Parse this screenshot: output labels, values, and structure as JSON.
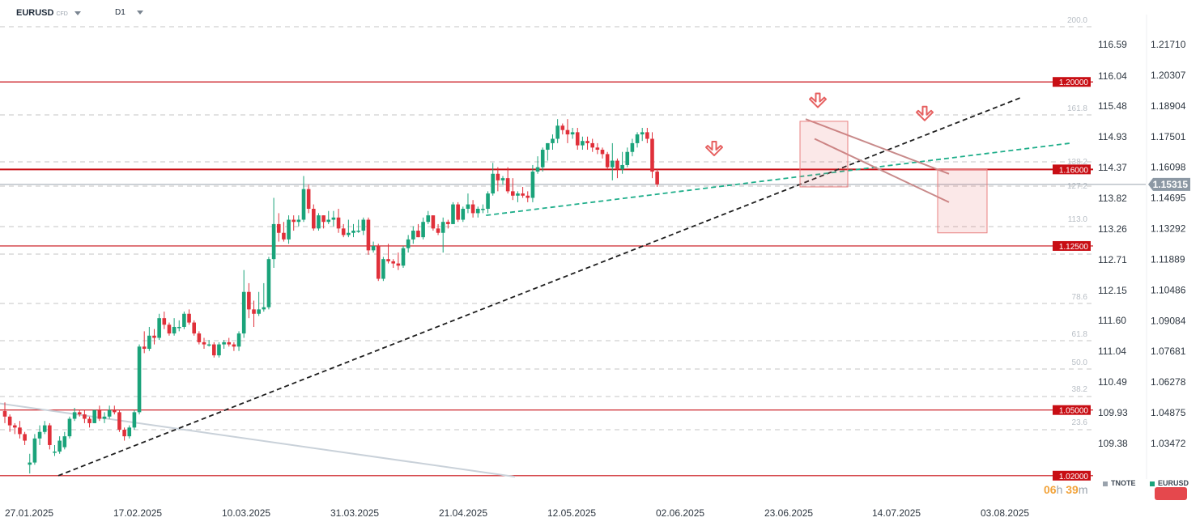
{
  "header": {
    "symbol": "EURUSD",
    "symbol_tag": "CFD",
    "timeframe": "D1"
  },
  "countdown": {
    "hours": "06",
    "hours_unit": "h",
    "minutes": "39",
    "minutes_unit": "m"
  },
  "legend": [
    {
      "label": "TNOTE",
      "color": "#9aa3ad"
    },
    {
      "label": "EURUSD",
      "color": "#1aa37a"
    }
  ],
  "colors": {
    "bull": "#1aa37a",
    "bear": "#e0303a",
    "level": "#c80e14",
    "fib": "#d8d8d8",
    "trend": "#1f1f1f",
    "channel": "#c88a8a",
    "green_line": "#1fae8a",
    "tnote_line": "#c9d1d9",
    "arrow": "#e66060"
  },
  "chart_data": {
    "type": "candlestick",
    "symbol": "EURUSD",
    "timeframe": "D1",
    "x_labels": [
      "27.01.2025",
      "17.02.2025",
      "10.03.2025",
      "31.03.2025",
      "21.04.2025",
      "12.05.2025",
      "02.06.2025",
      "23.06.2025",
      "14.07.2025",
      "03.08.2025"
    ],
    "y_axis_left": {
      "label": "TNOTE",
      "ticks": [
        116.59,
        116.04,
        115.48,
        114.93,
        114.37,
        113.82,
        113.26,
        112.71,
        112.15,
        111.6,
        111.04,
        110.49,
        109.93,
        109.38
      ]
    },
    "y_axis_right": {
      "ticks": [
        1.2171,
        1.20307,
        1.18904,
        1.17501,
        1.16098,
        1.14695,
        1.13292,
        1.11889,
        1.10486,
        1.09084,
        1.07681,
        1.06278,
        1.04875,
        1.03472
      ]
    },
    "current_price": "1.15315",
    "horizontal_levels": [
      "1.20000",
      "1.16000",
      "1.12500",
      "1.05000",
      "1.02000"
    ],
    "fibonacci": [
      "200.0",
      "161.8",
      "138.2",
      "127.2",
      "113.0",
      "78.6",
      "61.8",
      "50.0",
      "38.2",
      "23.6"
    ],
    "candles": [
      {
        "d": "27.01.2025",
        "o": 1.0495,
        "h": 1.0535,
        "l": 1.044,
        "c": 1.047
      },
      {
        "d": "28.01.2025",
        "o": 1.047,
        "h": 1.048,
        "l": 1.04,
        "c": 1.043
      },
      {
        "d": "29.01.2025",
        "o": 1.043,
        "h": 1.044,
        "l": 1.039,
        "c": 1.042
      },
      {
        "d": "30.01.2025",
        "o": 1.042,
        "h": 1.045,
        "l": 1.037,
        "c": 1.039
      },
      {
        "d": "31.01.2025",
        "o": 1.039,
        "h": 1.04,
        "l": 1.034,
        "c": 1.036
      },
      {
        "d": "03.02.2025",
        "o": 1.025,
        "h": 1.03,
        "l": 1.021,
        "c": 1.026
      },
      {
        "d": "04.02.2025",
        "o": 1.026,
        "h": 1.039,
        "l": 1.025,
        "c": 1.037
      },
      {
        "d": "05.02.2025",
        "o": 1.037,
        "h": 1.043,
        "l": 1.034,
        "c": 1.04
      },
      {
        "d": "06.02.2025",
        "o": 1.04,
        "h": 1.045,
        "l": 1.039,
        "c": 1.043
      },
      {
        "d": "07.02.2025",
        "o": 1.043,
        "h": 1.044,
        "l": 1.032,
        "c": 1.034
      },
      {
        "d": "10.02.2025",
        "o": 1.031,
        "h": 1.034,
        "l": 1.029,
        "c": 1.031
      },
      {
        "d": "11.02.2025",
        "o": 1.031,
        "h": 1.038,
        "l": 1.03,
        "c": 1.036
      },
      {
        "d": "12.02.2025",
        "o": 1.033,
        "h": 1.04,
        "l": 1.032,
        "c": 1.038
      },
      {
        "d": "13.02.2025",
        "o": 1.038,
        "h": 1.047,
        "l": 1.037,
        "c": 1.046
      },
      {
        "d": "14.02.2025",
        "o": 1.046,
        "h": 1.051,
        "l": 1.045,
        "c": 1.049
      },
      {
        "d": "17.02.2025",
        "o": 1.049,
        "h": 1.05,
        "l": 1.047,
        "c": 1.048
      },
      {
        "d": "18.02.2025",
        "o": 1.048,
        "h": 1.05,
        "l": 1.044,
        "c": 1.046
      },
      {
        "d": "19.02.2025",
        "o": 1.046,
        "h": 1.047,
        "l": 1.042,
        "c": 1.044
      },
      {
        "d": "20.02.2025",
        "o": 1.044,
        "h": 1.05,
        "l": 1.044,
        "c": 1.05
      },
      {
        "d": "21.02.2025",
        "o": 1.05,
        "h": 1.052,
        "l": 1.045,
        "c": 1.046
      },
      {
        "d": "24.02.2025",
        "o": 1.046,
        "h": 1.049,
        "l": 1.044,
        "c": 1.047
      },
      {
        "d": "25.02.2025",
        "o": 1.047,
        "h": 1.052,
        "l": 1.046,
        "c": 1.05
      },
      {
        "d": "26.02.2025",
        "o": 1.05,
        "h": 1.052,
        "l": 1.048,
        "c": 1.049
      },
      {
        "d": "27.02.2025",
        "o": 1.049,
        "h": 1.05,
        "l": 1.04,
        "c": 1.041
      },
      {
        "d": "28.02.2025",
        "o": 1.041,
        "h": 1.042,
        "l": 1.036,
        "c": 1.038
      },
      {
        "d": "03.03.2025",
        "o": 1.038,
        "h": 1.043,
        "l": 1.037,
        "c": 1.042
      },
      {
        "d": "04.03.2025",
        "o": 1.042,
        "h": 1.05,
        "l": 1.041,
        "c": 1.049
      },
      {
        "d": "05.03.2025",
        "o": 1.049,
        "h": 1.08,
        "l": 1.048,
        "c": 1.079
      },
      {
        "d": "06.03.2025",
        "o": 1.079,
        "h": 1.086,
        "l": 1.076,
        "c": 1.078
      },
      {
        "d": "07.03.2025",
        "o": 1.078,
        "h": 1.088,
        "l": 1.077,
        "c": 1.084
      },
      {
        "d": "10.03.2025",
        "o": 1.084,
        "h": 1.087,
        "l": 1.08,
        "c": 1.083
      },
      {
        "d": "11.03.2025",
        "o": 1.083,
        "h": 1.094,
        "l": 1.082,
        "c": 1.092
      },
      {
        "d": "12.03.2025",
        "o": 1.092,
        "h": 1.095,
        "l": 1.087,
        "c": 1.089
      },
      {
        "d": "13.03.2025",
        "o": 1.089,
        "h": 1.09,
        "l": 1.084,
        "c": 1.085
      },
      {
        "d": "14.03.2025",
        "o": 1.085,
        "h": 1.092,
        "l": 1.084,
        "c": 1.088
      },
      {
        "d": "17.03.2025",
        "o": 1.088,
        "h": 1.091,
        "l": 1.086,
        "c": 1.088
      },
      {
        "d": "18.03.2025",
        "o": 1.088,
        "h": 1.095,
        "l": 1.087,
        "c": 1.094
      },
      {
        "d": "19.03.2025",
        "o": 1.094,
        "h": 1.096,
        "l": 1.089,
        "c": 1.09
      },
      {
        "d": "20.03.2025",
        "o": 1.09,
        "h": 1.091,
        "l": 1.084,
        "c": 1.085
      },
      {
        "d": "21.03.2025",
        "o": 1.085,
        "h": 1.086,
        "l": 1.08,
        "c": 1.081
      },
      {
        "d": "24.03.2025",
        "o": 1.081,
        "h": 1.083,
        "l": 1.078,
        "c": 1.08
      },
      {
        "d": "25.03.2025",
        "o": 1.08,
        "h": 1.082,
        "l": 1.079,
        "c": 1.08
      },
      {
        "d": "26.03.2025",
        "o": 1.08,
        "h": 1.081,
        "l": 1.074,
        "c": 1.075
      },
      {
        "d": "27.03.2025",
        "o": 1.075,
        "h": 1.081,
        "l": 1.074,
        "c": 1.08
      },
      {
        "d": "28.03.2025",
        "o": 1.08,
        "h": 1.082,
        "l": 1.078,
        "c": 1.081
      },
      {
        "d": "31.03.2025",
        "o": 1.081,
        "h": 1.083,
        "l": 1.079,
        "c": 1.08
      },
      {
        "d": "01.04.2025",
        "o": 1.08,
        "h": 1.081,
        "l": 1.077,
        "c": 1.079
      },
      {
        "d": "02.04.2025",
        "o": 1.079,
        "h": 1.086,
        "l": 1.077,
        "c": 1.085
      },
      {
        "d": "03.04.2025",
        "o": 1.085,
        "h": 1.114,
        "l": 1.083,
        "c": 1.104
      },
      {
        "d": "04.04.2025",
        "o": 1.104,
        "h": 1.108,
        "l": 1.092,
        "c": 1.096
      },
      {
        "d": "07.04.2025",
        "o": 1.096,
        "h": 1.1,
        "l": 1.088,
        "c": 1.094
      },
      {
        "d": "08.04.2025",
        "o": 1.094,
        "h": 1.104,
        "l": 1.093,
        "c": 1.096
      },
      {
        "d": "09.04.2025",
        "o": 1.096,
        "h": 1.108,
        "l": 1.095,
        "c": 1.097
      },
      {
        "d": "10.04.2025",
        "o": 1.097,
        "h": 1.12,
        "l": 1.096,
        "c": 1.119
      },
      {
        "d": "11.04.2025",
        "o": 1.119,
        "h": 1.147,
        "l": 1.115,
        "c": 1.135
      },
      {
        "d": "14.04.2025",
        "o": 1.135,
        "h": 1.14,
        "l": 1.127,
        "c": 1.131
      },
      {
        "d": "15.04.2025",
        "o": 1.131,
        "h": 1.136,
        "l": 1.127,
        "c": 1.128
      },
      {
        "d": "16.04.2025",
        "o": 1.128,
        "h": 1.139,
        "l": 1.126,
        "c": 1.137
      },
      {
        "d": "17.04.2025",
        "o": 1.137,
        "h": 1.139,
        "l": 1.132,
        "c": 1.136
      },
      {
        "d": "18.04.2025",
        "o": 1.136,
        "h": 1.139,
        "l": 1.134,
        "c": 1.137
      },
      {
        "d": "21.04.2025",
        "o": 1.137,
        "h": 1.157,
        "l": 1.136,
        "c": 1.151
      },
      {
        "d": "22.04.2025",
        "o": 1.151,
        "h": 1.153,
        "l": 1.14,
        "c": 1.142
      },
      {
        "d": "23.04.2025",
        "o": 1.142,
        "h": 1.144,
        "l": 1.132,
        "c": 1.133
      },
      {
        "d": "24.04.2025",
        "o": 1.133,
        "h": 1.14,
        "l": 1.132,
        "c": 1.139
      },
      {
        "d": "25.04.2025",
        "o": 1.139,
        "h": 1.139,
        "l": 1.133,
        "c": 1.136
      },
      {
        "d": "28.04.2025",
        "o": 1.136,
        "h": 1.141,
        "l": 1.135,
        "c": 1.137
      },
      {
        "d": "29.04.2025",
        "o": 1.137,
        "h": 1.141,
        "l": 1.134,
        "c": 1.138
      },
      {
        "d": "30.04.2025",
        "o": 1.138,
        "h": 1.142,
        "l": 1.131,
        "c": 1.133
      },
      {
        "d": "01.05.2025",
        "o": 1.133,
        "h": 1.135,
        "l": 1.129,
        "c": 1.13
      },
      {
        "d": "02.05.2025",
        "o": 1.13,
        "h": 1.137,
        "l": 1.129,
        "c": 1.131
      },
      {
        "d": "05.05.2025",
        "o": 1.131,
        "h": 1.135,
        "l": 1.129,
        "c": 1.132
      },
      {
        "d": "06.05.2025",
        "o": 1.132,
        "h": 1.137,
        "l": 1.131,
        "c": 1.132
      },
      {
        "d": "07.05.2025",
        "o": 1.132,
        "h": 1.138,
        "l": 1.13,
        "c": 1.137
      },
      {
        "d": "08.05.2025",
        "o": 1.137,
        "h": 1.138,
        "l": 1.121,
        "c": 1.123
      },
      {
        "d": "09.05.2025",
        "o": 1.123,
        "h": 1.127,
        "l": 1.122,
        "c": 1.125
      },
      {
        "d": "12.05.2025",
        "o": 1.125,
        "h": 1.126,
        "l": 1.109,
        "c": 1.11
      },
      {
        "d": "13.05.2025",
        "o": 1.11,
        "h": 1.12,
        "l": 1.109,
        "c": 1.119
      },
      {
        "d": "14.05.2025",
        "o": 1.119,
        "h": 1.126,
        "l": 1.117,
        "c": 1.118
      },
      {
        "d": "15.05.2025",
        "o": 1.118,
        "h": 1.119,
        "l": 1.115,
        "c": 1.117
      },
      {
        "d": "16.05.2025",
        "o": 1.117,
        "h": 1.122,
        "l": 1.114,
        "c": 1.116
      },
      {
        "d": "19.05.2025",
        "o": 1.116,
        "h": 1.125,
        "l": 1.115,
        "c": 1.124
      },
      {
        "d": "20.05.2025",
        "o": 1.124,
        "h": 1.13,
        "l": 1.122,
        "c": 1.128
      },
      {
        "d": "21.05.2025",
        "o": 1.128,
        "h": 1.134,
        "l": 1.126,
        "c": 1.132
      },
      {
        "d": "22.05.2025",
        "o": 1.132,
        "h": 1.135,
        "l": 1.129,
        "c": 1.129
      },
      {
        "d": "23.05.2025",
        "o": 1.129,
        "h": 1.138,
        "l": 1.128,
        "c": 1.136
      },
      {
        "d": "26.05.2025",
        "o": 1.136,
        "h": 1.141,
        "l": 1.135,
        "c": 1.139
      },
      {
        "d": "27.05.2025",
        "o": 1.139,
        "h": 1.139,
        "l": 1.132,
        "c": 1.133
      },
      {
        "d": "28.05.2025",
        "o": 1.133,
        "h": 1.135,
        "l": 1.13,
        "c": 1.131
      },
      {
        "d": "29.05.2025",
        "o": 1.131,
        "h": 1.138,
        "l": 1.122,
        "c": 1.136
      },
      {
        "d": "30.05.2025",
        "o": 1.136,
        "h": 1.137,
        "l": 1.133,
        "c": 1.135
      },
      {
        "d": "02.06.2025",
        "o": 1.135,
        "h": 1.145,
        "l": 1.135,
        "c": 1.144
      },
      {
        "d": "03.06.2025",
        "o": 1.144,
        "h": 1.145,
        "l": 1.136,
        "c": 1.137
      },
      {
        "d": "04.06.2025",
        "o": 1.137,
        "h": 1.143,
        "l": 1.136,
        "c": 1.142
      },
      {
        "d": "05.06.2025",
        "o": 1.142,
        "h": 1.149,
        "l": 1.14,
        "c": 1.144
      },
      {
        "d": "06.06.2025",
        "o": 1.144,
        "h": 1.146,
        "l": 1.138,
        "c": 1.14
      },
      {
        "d": "09.06.2025",
        "o": 1.14,
        "h": 1.143,
        "l": 1.138,
        "c": 1.142
      },
      {
        "d": "10.06.2025",
        "o": 1.142,
        "h": 1.144,
        "l": 1.14,
        "c": 1.142
      },
      {
        "d": "11.06.2025",
        "o": 1.142,
        "h": 1.15,
        "l": 1.14,
        "c": 1.149
      },
      {
        "d": "12.06.2025",
        "o": 1.149,
        "h": 1.163,
        "l": 1.148,
        "c": 1.158
      },
      {
        "d": "13.06.2025",
        "o": 1.158,
        "h": 1.161,
        "l": 1.15,
        "c": 1.155
      },
      {
        "d": "16.06.2025",
        "o": 1.155,
        "h": 1.157,
        "l": 1.153,
        "c": 1.156
      },
      {
        "d": "17.06.2025",
        "o": 1.156,
        "h": 1.161,
        "l": 1.149,
        "c": 1.15
      },
      {
        "d": "18.06.2025",
        "o": 1.15,
        "h": 1.156,
        "l": 1.146,
        "c": 1.148
      },
      {
        "d": "19.06.2025",
        "o": 1.148,
        "h": 1.15,
        "l": 1.145,
        "c": 1.149
      },
      {
        "d": "20.06.2025",
        "o": 1.149,
        "h": 1.152,
        "l": 1.147,
        "c": 1.148
      },
      {
        "d": "23.06.2025",
        "o": 1.148,
        "h": 1.15,
        "l": 1.145,
        "c": 1.147
      },
      {
        "d": "24.06.2025",
        "o": 1.147,
        "h": 1.162,
        "l": 1.145,
        "c": 1.159
      },
      {
        "d": "25.06.2025",
        "o": 1.159,
        "h": 1.166,
        "l": 1.158,
        "c": 1.161
      },
      {
        "d": "26.06.2025",
        "o": 1.161,
        "h": 1.17,
        "l": 1.159,
        "c": 1.169
      },
      {
        "d": "27.06.2025",
        "o": 1.169,
        "h": 1.172,
        "l": 1.164,
        "c": 1.172
      },
      {
        "d": "30.06.2025",
        "o": 1.172,
        "h": 1.176,
        "l": 1.169,
        "c": 1.174
      },
      {
        "d": "01.07.2025",
        "o": 1.174,
        "h": 1.183,
        "l": 1.172,
        "c": 1.18
      },
      {
        "d": "02.07.2025",
        "o": 1.18,
        "h": 1.181,
        "l": 1.176,
        "c": 1.178
      },
      {
        "d": "03.07.2025",
        "o": 1.178,
        "h": 1.183,
        "l": 1.172,
        "c": 1.176
      },
      {
        "d": "04.07.2025",
        "o": 1.176,
        "h": 1.179,
        "l": 1.174,
        "c": 1.177
      },
      {
        "d": "07.07.2025",
        "o": 1.177,
        "h": 1.179,
        "l": 1.169,
        "c": 1.171
      },
      {
        "d": "08.07.2025",
        "o": 1.171,
        "h": 1.175,
        "l": 1.169,
        "c": 1.173
      },
      {
        "d": "09.07.2025",
        "o": 1.173,
        "h": 1.175,
        "l": 1.169,
        "c": 1.172
      },
      {
        "d": "10.07.2025",
        "o": 1.172,
        "h": 1.174,
        "l": 1.168,
        "c": 1.17
      },
      {
        "d": "11.07.2025",
        "o": 1.17,
        "h": 1.172,
        "l": 1.167,
        "c": 1.169
      },
      {
        "d": "14.07.2025",
        "o": 1.169,
        "h": 1.17,
        "l": 1.165,
        "c": 1.167
      },
      {
        "d": "15.07.2025",
        "o": 1.167,
        "h": 1.168,
        "l": 1.16,
        "c": 1.161
      },
      {
        "d": "16.07.2025",
        "o": 1.161,
        "h": 1.172,
        "l": 1.155,
        "c": 1.164
      },
      {
        "d": "17.07.2025",
        "o": 1.164,
        "h": 1.165,
        "l": 1.156,
        "c": 1.16
      },
      {
        "d": "18.07.2025",
        "o": 1.16,
        "h": 1.168,
        "l": 1.158,
        "c": 1.162
      },
      {
        "d": "21.07.2025",
        "o": 1.162,
        "h": 1.17,
        "l": 1.161,
        "c": 1.168
      },
      {
        "d": "22.07.2025",
        "o": 1.168,
        "h": 1.174,
        "l": 1.166,
        "c": 1.172
      },
      {
        "d": "23.07.2025",
        "o": 1.172,
        "h": 1.177,
        "l": 1.17,
        "c": 1.176
      },
      {
        "d": "24.07.2025",
        "o": 1.176,
        "h": 1.179,
        "l": 1.173,
        "c": 1.177
      },
      {
        "d": "25.07.2025",
        "o": 1.177,
        "h": 1.179,
        "l": 1.172,
        "c": 1.174
      },
      {
        "d": "28.07.2025",
        "o": 1.174,
        "h": 1.177,
        "l": 1.156,
        "c": 1.159
      },
      {
        "d": "29.07.2025",
        "o": 1.159,
        "h": 1.16,
        "l": 1.152,
        "c": 1.1532
      }
    ]
  }
}
